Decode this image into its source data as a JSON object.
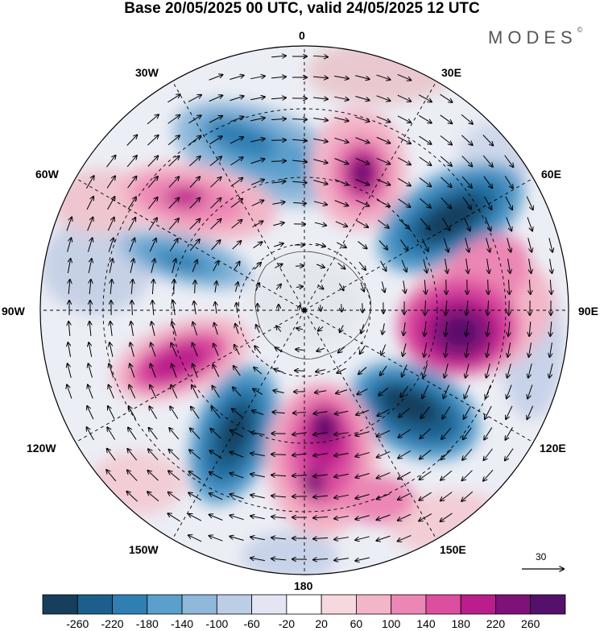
{
  "title": "Base 20/05/2025 00 UTC, valid 24/05/2025 12 UTC",
  "logo": {
    "text": "MODES",
    "mark": "©"
  },
  "longitude_labels": {
    "lon_0": "0",
    "lon_30e": "30E",
    "lon_60e": "60E",
    "lon_90e": "90E",
    "lon_120e": "120E",
    "lon_150e": "150E",
    "lon_180": "180",
    "lon_150w": "150W",
    "lon_120w": "120W",
    "lon_90w": "90W",
    "lon_60w": "60W",
    "lon_30w": "30W"
  },
  "reference_vector": {
    "label": "30"
  },
  "colorbar": {
    "levels": [
      "-260",
      "-220",
      "-180",
      "-140",
      "-100",
      "-60",
      "-20",
      "20",
      "60",
      "100",
      "140",
      "180",
      "220",
      "260"
    ],
    "colors": [
      "#173e5c",
      "#1c5f8c",
      "#2f7fb3",
      "#5b9fcc",
      "#8fb8da",
      "#bccde6",
      "#e3e6f2",
      "#ffffff",
      "#f6d9de",
      "#f3b6c8",
      "#ec86b4",
      "#dc4ea0",
      "#bb1d8c",
      "#7e1279",
      "#55106b"
    ]
  },
  "map": {
    "projection": "polar stereographic (south pole)",
    "field": "geopotential height anomaly with wind vectors"
  }
}
